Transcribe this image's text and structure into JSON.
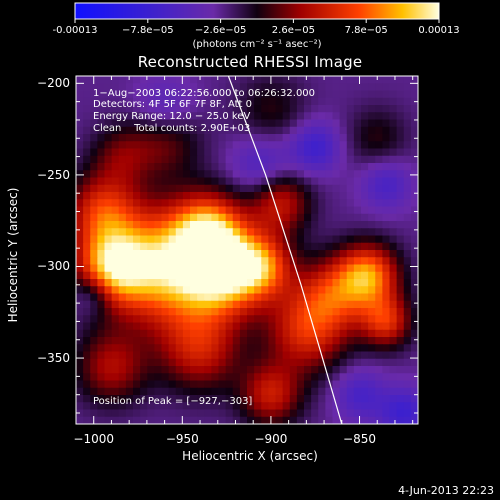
{
  "chart_data": {
    "type": "heatmap",
    "title": "Reconstructed RHESSI Image",
    "xlabel": "Heliocentric X (arcsec)",
    "ylabel": "Heliocentric Y (arcsec)",
    "xlim": [
      -1010,
      -817
    ],
    "ylim": [
      -386,
      -196
    ],
    "xticks": [
      -1000,
      -950,
      -900,
      -850
    ],
    "yticks": [
      -200,
      -250,
      -300,
      -350
    ],
    "colorbar": {
      "ticks": [
        "-0.00013",
        "−7.8e−05",
        "−2.6e−05",
        "2.6e−05",
        "7.8e−05",
        "0.00013"
      ],
      "units": "(photons cm⁻² s⁻¹ asec⁻²)",
      "range": [
        -0.00013,
        0.00013
      ]
    },
    "annotations": [
      "1−Aug−2003 06:22:56.000 to 06:26:32.000",
      "Detectors: 4F 5F 6F 7F 8F, Att 0",
      "Energy Range: 12.0 − 25.0 keV",
      "Clean    Total counts: 2.90E+03"
    ],
    "peak_label": "Position of Peak = [−927,−303]",
    "peak": {
      "x": -927,
      "y": -303
    },
    "limb_curve": [
      [
        -924,
        -196
      ],
      [
        -903,
        -250
      ],
      [
        -883,
        -310
      ],
      [
        -860,
        -386
      ]
    ],
    "sources": [
      {
        "x": -960,
        "y": -300,
        "amp": 0.00013,
        "w": 22
      },
      {
        "x": -927,
        "y": -303,
        "amp": 0.00013,
        "w": 16
      },
      {
        "x": -935,
        "y": -280,
        "amp": 0.0001,
        "w": 14
      },
      {
        "x": -990,
        "y": -300,
        "amp": 0.00011,
        "w": 14
      },
      {
        "x": -995,
        "y": -270,
        "amp": 8e-05,
        "w": 14
      },
      {
        "x": -905,
        "y": -300,
        "amp": 9e-05,
        "w": 12
      },
      {
        "x": -895,
        "y": -265,
        "amp": 7e-05,
        "w": 12
      },
      {
        "x": -880,
        "y": -335,
        "amp": 8e-05,
        "w": 16
      },
      {
        "x": -865,
        "y": -315,
        "amp": 7e-05,
        "w": 14
      },
      {
        "x": -845,
        "y": -305,
        "amp": 0.00011,
        "w": 12
      },
      {
        "x": -835,
        "y": -330,
        "amp": 8e-05,
        "w": 10
      },
      {
        "x": -940,
        "y": -345,
        "amp": 7e-05,
        "w": 16
      },
      {
        "x": -990,
        "y": -355,
        "amp": 6e-05,
        "w": 14
      },
      {
        "x": -900,
        "y": -370,
        "amp": 7e-05,
        "w": 12
      },
      {
        "x": -960,
        "y": -230,
        "amp": 5e-05,
        "w": 14
      },
      {
        "x": -985,
        "y": -240,
        "amp": 4e-05,
        "w": 12
      },
      {
        "x": -900,
        "y": -215,
        "amp": 3e-05,
        "w": 14
      },
      {
        "x": -840,
        "y": -230,
        "amp": 3e-05,
        "w": 12
      },
      {
        "x": -850,
        "y": -370,
        "amp": -4e-05,
        "w": 10
      },
      {
        "x": -960,
        "y": -215,
        "amp": -4e-05,
        "w": 12
      },
      {
        "x": -905,
        "y": -245,
        "amp": -4e-05,
        "w": 12
      },
      {
        "x": -1000,
        "y": -315,
        "amp": -4e-05,
        "w": 8
      },
      {
        "x": -875,
        "y": -235,
        "amp": -5e-05,
        "w": 10
      },
      {
        "x": -835,
        "y": -255,
        "amp": -4e-05,
        "w": 10
      },
      {
        "x": -825,
        "y": -380,
        "amp": -5e-05,
        "w": 10
      }
    ]
  },
  "footer": {
    "timestamp": "4-Jun-2013 22:23"
  }
}
